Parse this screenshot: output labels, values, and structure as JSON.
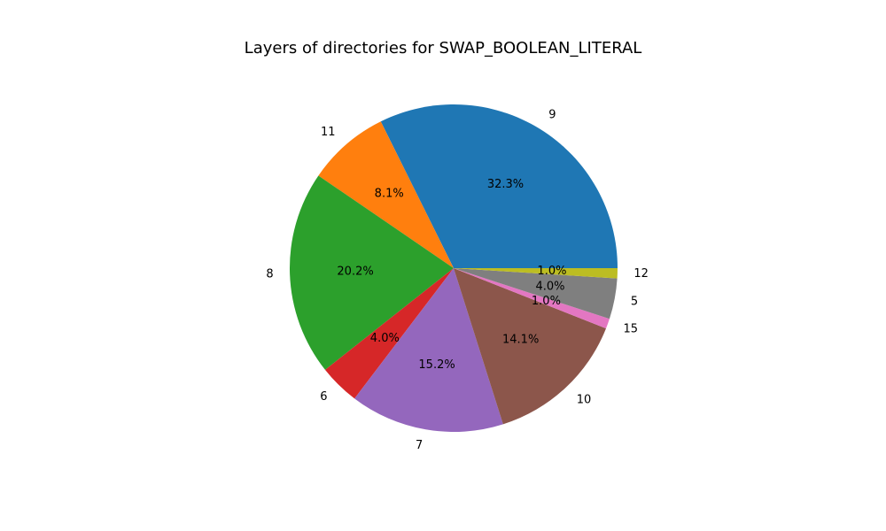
{
  "chart_data": {
    "type": "pie",
    "title": "Layers of directories for SWAP_BOOLEAN_LITERAL",
    "start_angle_deg": 0,
    "direction": "counterclockwise",
    "slices": [
      {
        "label": "9",
        "value": 32.3,
        "pct_label": "32.3%",
        "color": "#1f77b4"
      },
      {
        "label": "11",
        "value": 8.1,
        "pct_label": "8.1%",
        "color": "#ff7f0e"
      },
      {
        "label": "8",
        "value": 20.2,
        "pct_label": "20.2%",
        "color": "#2ca02c"
      },
      {
        "label": "6",
        "value": 4.0,
        "pct_label": "4.0%",
        "color": "#d62728"
      },
      {
        "label": "7",
        "value": 15.2,
        "pct_label": "15.2%",
        "color": "#9467bd"
      },
      {
        "label": "10",
        "value": 14.1,
        "pct_label": "14.1%",
        "color": "#8c564b"
      },
      {
        "label": "15",
        "value": 1.0,
        "pct_label": "1.0%",
        "color": "#e377c2"
      },
      {
        "label": "5",
        "value": 4.0,
        "pct_label": "4.0%",
        "color": "#7f7f7f"
      },
      {
        "label": "12",
        "value": 1.0,
        "pct_label": "1.0%",
        "color": "#bcbd22"
      }
    ]
  }
}
